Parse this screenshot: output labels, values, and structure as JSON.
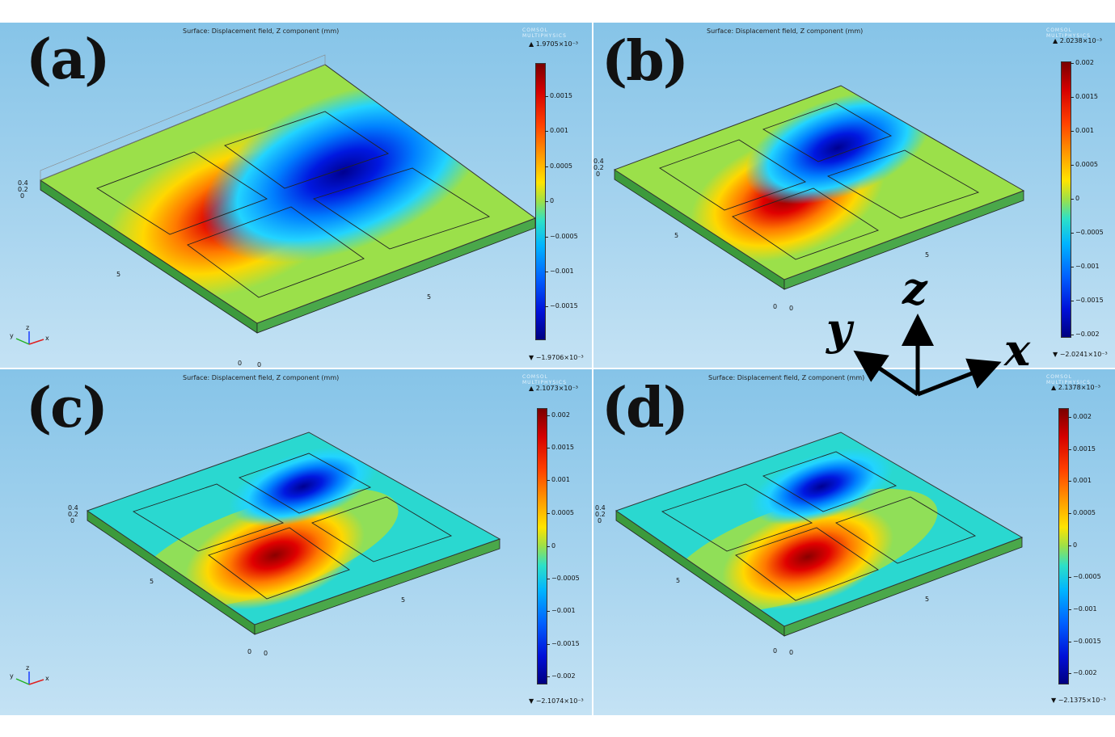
{
  "plot_title": "Surface: Displacement field, Z component (mm)",
  "logo_text": [
    "COMSOL",
    "MULTIPHYSICS"
  ],
  "axis_labels": {
    "x": "x",
    "y": "y",
    "z": "z"
  },
  "panels": {
    "a": {
      "letter": "(a)",
      "max": "1.9705×10⁻³",
      "min": "−1.9706×10⁻³",
      "ticks": [
        "0.0015",
        "0.001",
        "0.0005",
        "0",
        "−0.0005",
        "−0.001",
        "−0.0015"
      ],
      "height_ticks": [
        "0.4",
        "0.2",
        "0"
      ],
      "axis_ticks": [
        "5",
        "5",
        "0",
        "0"
      ]
    },
    "b": {
      "letter": "(b)",
      "max": "2.0238×10⁻³",
      "min": "−2.0241×10⁻³",
      "ticks": [
        "0.002",
        "0.0015",
        "0.001",
        "0.0005",
        "0",
        "−0.0005",
        "−0.001",
        "−0.0015",
        "−0.002"
      ],
      "height_ticks": [
        "0.4",
        "0.2",
        "0"
      ],
      "axis_ticks": [
        "5",
        "5",
        "0",
        "0"
      ]
    },
    "c": {
      "letter": "(c)",
      "max": "2.1073×10⁻³",
      "min": "−2.1074×10⁻³",
      "ticks": [
        "0.002",
        "0.0015",
        "0.001",
        "0.0005",
        "0",
        "−0.0005",
        "−0.001",
        "−0.0015",
        "−0.002"
      ],
      "height_ticks": [
        "0.4",
        "0.2",
        "0"
      ],
      "axis_ticks": [
        "5",
        "5",
        "0",
        "0"
      ]
    },
    "d": {
      "letter": "(d)",
      "max": "2.1378×10⁻³",
      "min": "−2.1375×10⁻³",
      "ticks": [
        "0.002",
        "0.0015",
        "0.001",
        "0.0005",
        "0",
        "−0.0005",
        "−0.001",
        "−0.0015",
        "−0.002"
      ],
      "height_ticks": [
        "0.4",
        "0.2",
        "0"
      ],
      "axis_ticks": [
        "5",
        "5",
        "0",
        "0"
      ]
    }
  },
  "colors": {
    "max": "#7a0000",
    "zero": "#9be04a",
    "min": "#000080"
  }
}
